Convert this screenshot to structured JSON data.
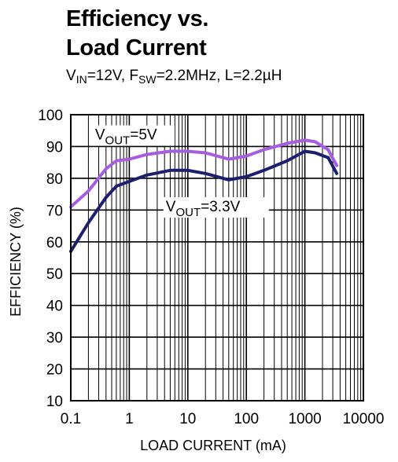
{
  "chart_data": {
    "type": "line",
    "title_line1": "Efficiency vs.",
    "title_line2": "Load Current",
    "subtitle": {
      "vin_base": "V",
      "vin_sub": "IN",
      "vin_val": "=12V, ",
      "fsw_base": "F",
      "fsw_sub": "SW",
      "fsw_val": "=2.2MHz, L=2.2µH"
    },
    "xlabel": "LOAD CURRENT (mA)",
    "ylabel": "EFFICIENCY (%)",
    "xscale": "log",
    "xlim": [
      0.1,
      10000
    ],
    "ylim": [
      10,
      100
    ],
    "x_ticks": [
      "0.1",
      "1",
      "10",
      "100",
      "1000",
      "10000"
    ],
    "y_ticks": [
      "10",
      "20",
      "30",
      "40",
      "50",
      "60",
      "70",
      "80",
      "90",
      "100"
    ],
    "grid": true,
    "series": [
      {
        "name": "VOUT=5V",
        "label_base": "V",
        "label_sub": "OUT",
        "label_val": "=5V",
        "color": "#a65de0",
        "x": [
          0.1,
          0.2,
          0.4,
          0.6,
          1,
          2,
          5,
          10,
          20,
          50,
          100,
          200,
          500,
          1000,
          1500,
          2500,
          3500
        ],
        "y": [
          71,
          76,
          83,
          85.5,
          86,
          87.5,
          88.5,
          88.5,
          88,
          86,
          87,
          89,
          91,
          92,
          91.5,
          89,
          84
        ]
      },
      {
        "name": "VOUT=3.3V",
        "label_base": "V",
        "label_sub": "OUT",
        "label_val": "=3.3V",
        "color": "#1e1e6e",
        "x": [
          0.1,
          0.2,
          0.4,
          0.6,
          1,
          2,
          5,
          10,
          20,
          50,
          100,
          200,
          500,
          1000,
          1500,
          2500,
          3500
        ],
        "y": [
          57,
          66,
          74,
          77.5,
          79,
          81,
          82.5,
          82.5,
          81.5,
          79.5,
          80.5,
          82.5,
          85.5,
          88.5,
          88,
          86.5,
          81.5
        ]
      }
    ]
  }
}
